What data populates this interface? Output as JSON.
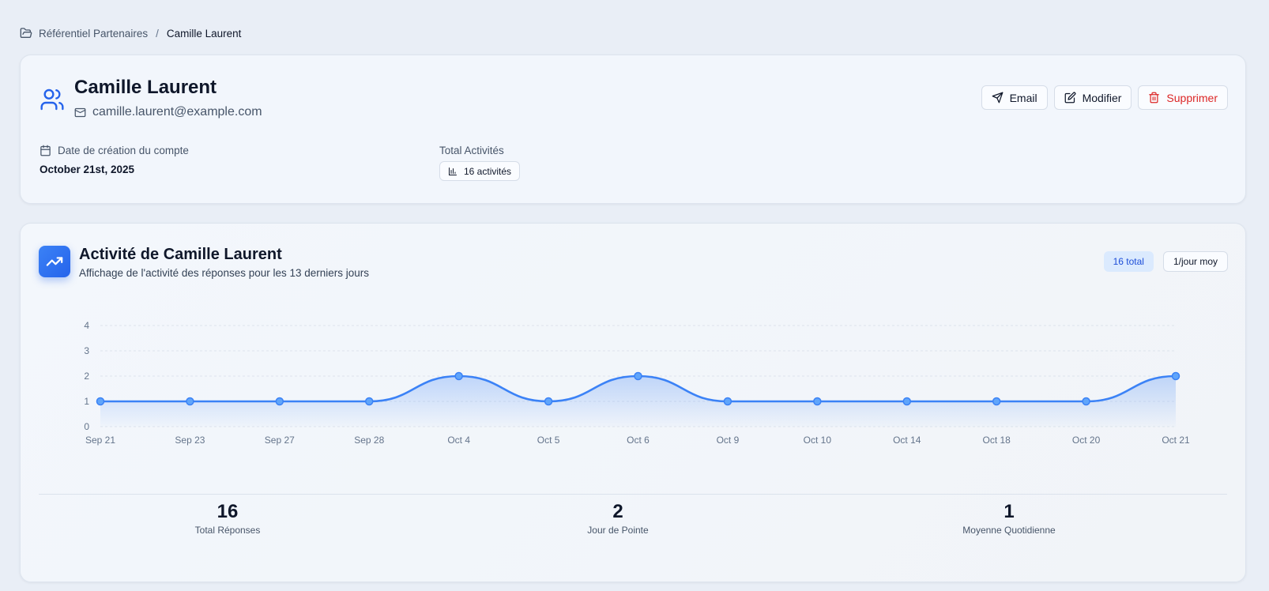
{
  "breadcrumb": {
    "root": "Référentiel Partenaires",
    "separator": "/",
    "current": "Camille Laurent"
  },
  "profile": {
    "name": "Camille Laurent",
    "email": "camille.laurent@example.com",
    "actions": {
      "email": "Email",
      "edit": "Modifier",
      "delete": "Supprimer"
    },
    "created_label": "Date de création du compte",
    "created_value": "October 21st, 2025",
    "activities_label": "Total Activités",
    "activities_value": "16 activités"
  },
  "activity": {
    "title": "Activité de Camille Laurent",
    "subtitle": "Affichage de l'activité des réponses pour les 13 derniers jours",
    "pill_total": "16 total",
    "pill_avg": "1/jour moy"
  },
  "chart_data": {
    "type": "area",
    "categories": [
      "Sep 21",
      "Sep 23",
      "Sep 27",
      "Sep 28",
      "Oct 4",
      "Oct 5",
      "Oct 6",
      "Oct 9",
      "Oct 10",
      "Oct 14",
      "Oct 18",
      "Oct 20",
      "Oct 21"
    ],
    "values": [
      1,
      1,
      1,
      1,
      2,
      1,
      2,
      1,
      1,
      1,
      1,
      1,
      2
    ],
    "yticks": [
      0,
      1,
      2,
      3,
      4
    ],
    "ylim": [
      0,
      4
    ],
    "grid": true,
    "color": "#3b82f6"
  },
  "stats": [
    {
      "value": "16",
      "label": "Total Réponses"
    },
    {
      "value": "2",
      "label": "Jour de Pointe"
    },
    {
      "value": "1",
      "label": "Moyenne Quotidienne"
    }
  ],
  "colors": {
    "accent": "#3b82f6",
    "danger": "#dc2626"
  },
  "icons": {
    "breadcrumb": "folder-open-icon",
    "profile": "users-icon",
    "email": "mail-icon",
    "calendar": "calendar-icon",
    "chart": "bar-chart-icon",
    "trend": "trending-up-icon",
    "send": "send-icon",
    "edit": "edit-icon",
    "trash": "trash-icon"
  }
}
